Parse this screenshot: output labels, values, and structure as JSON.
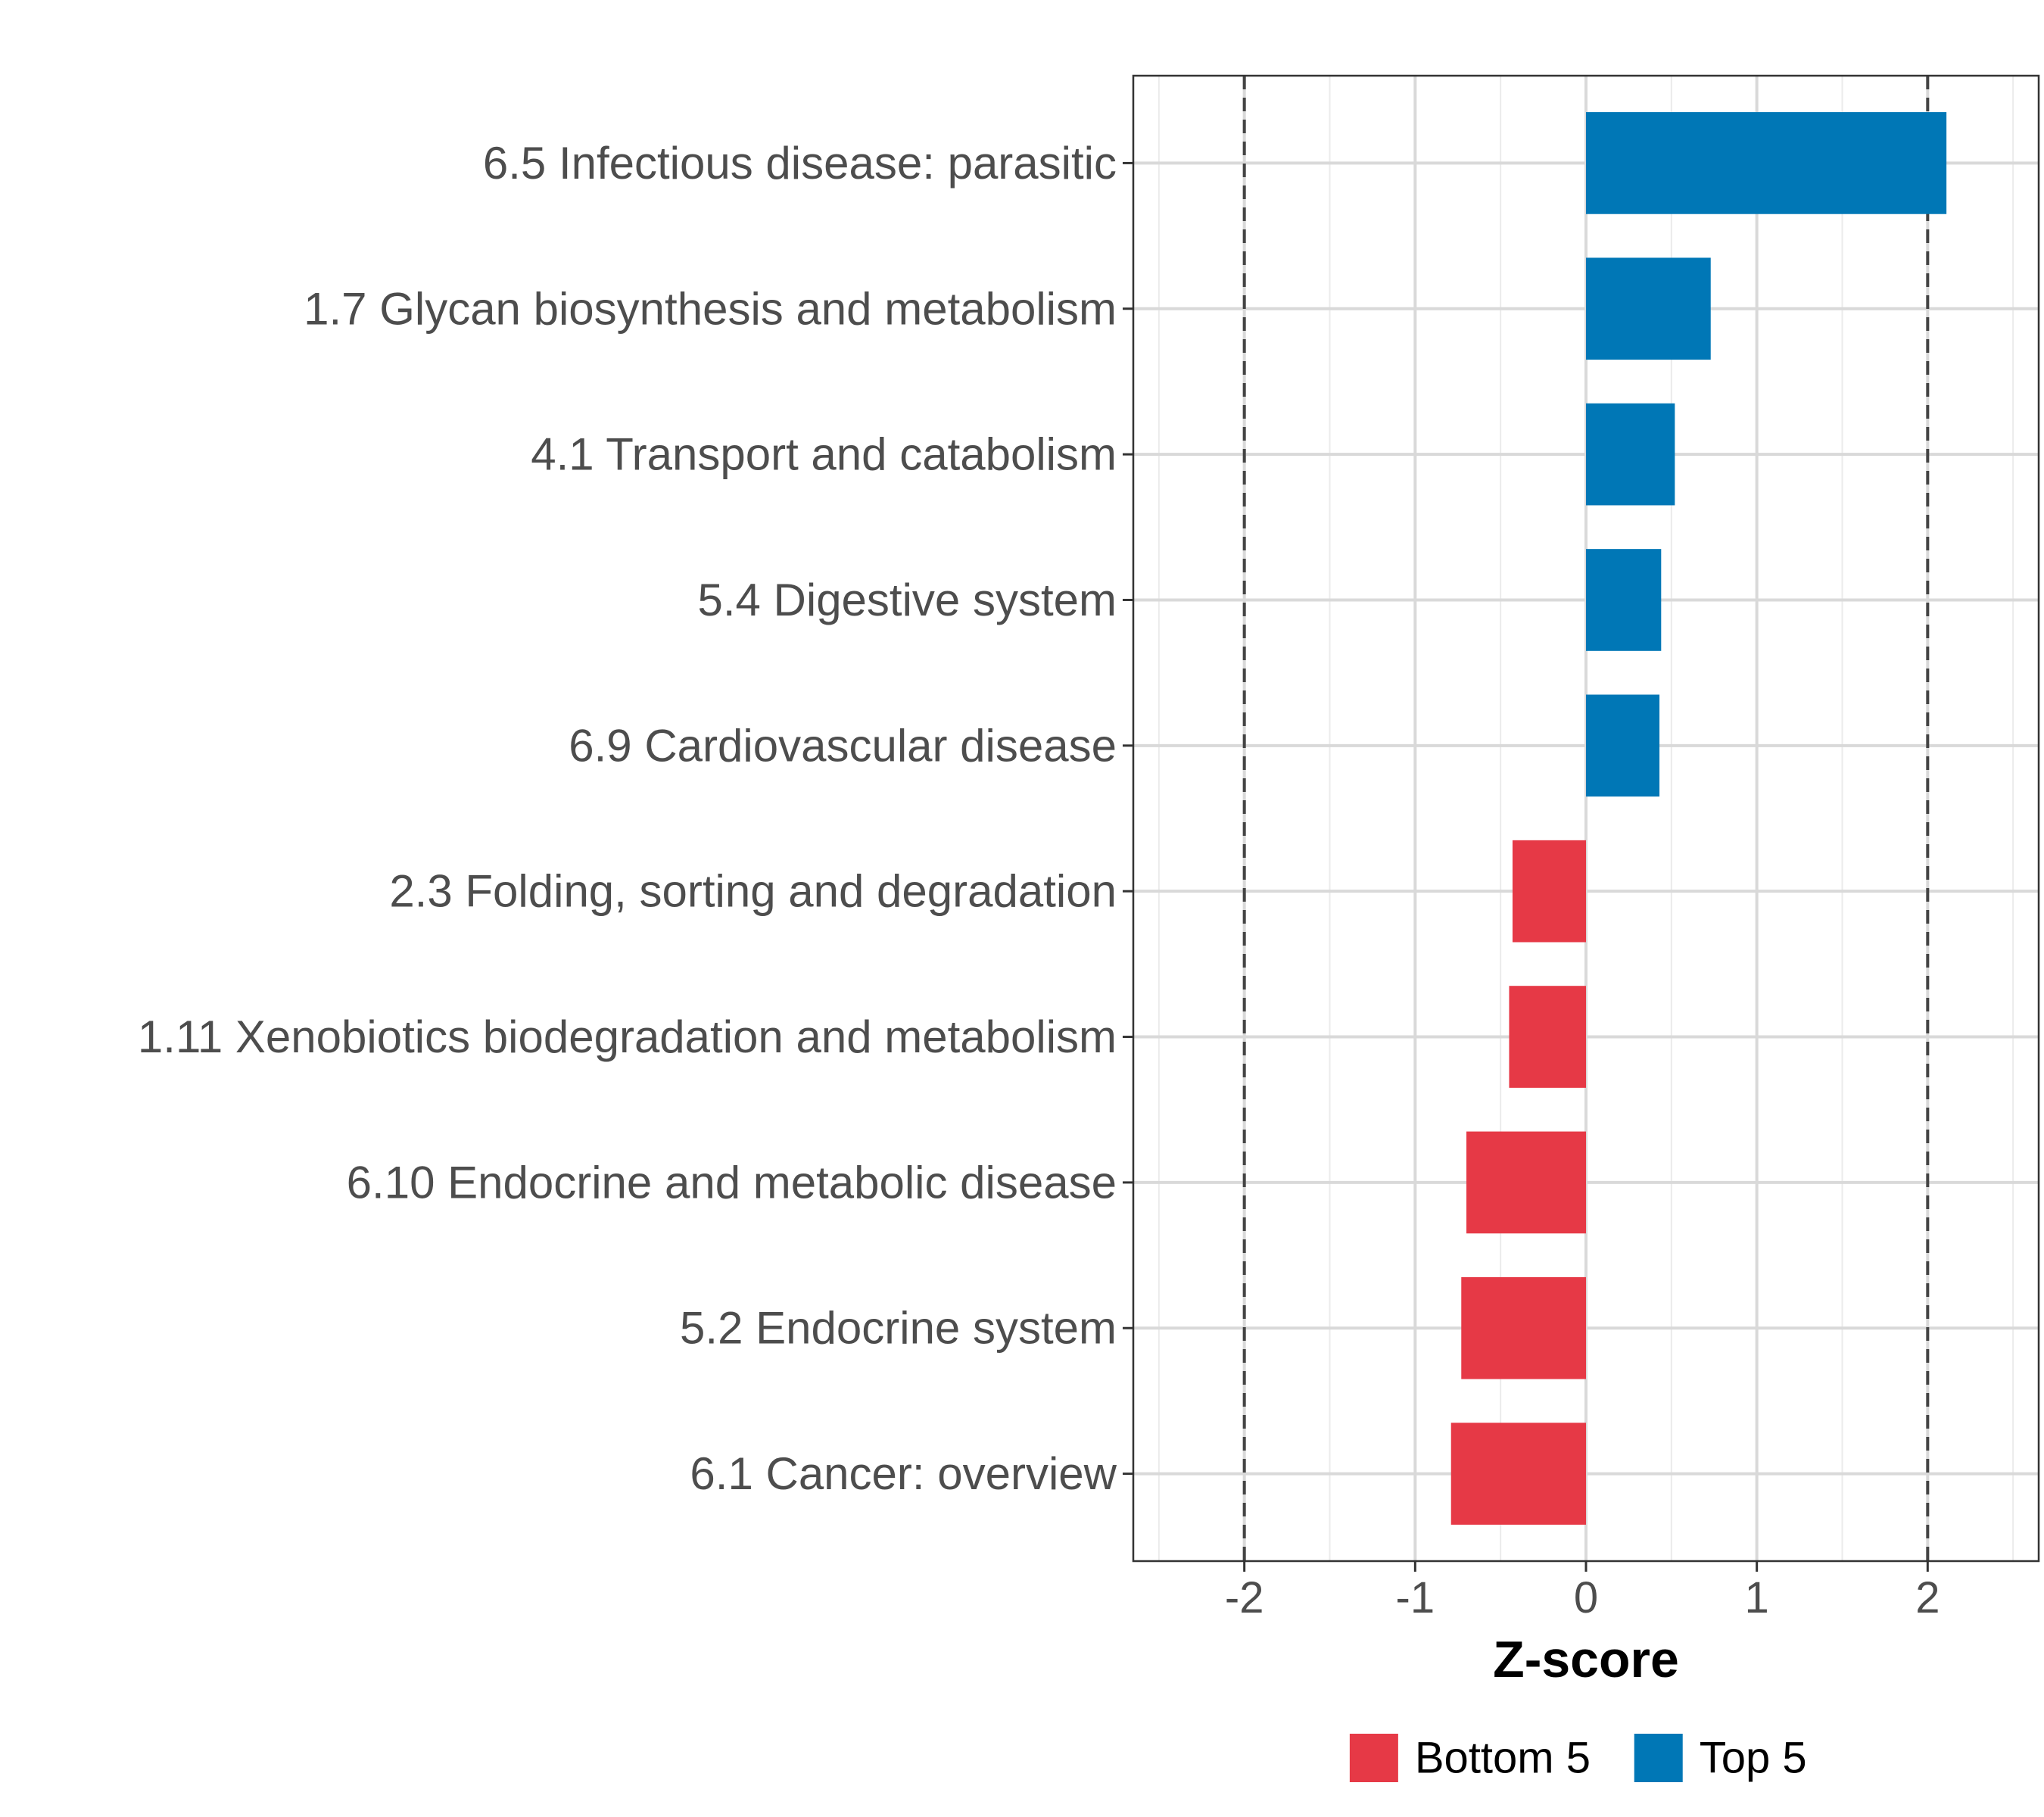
{
  "chart_data": {
    "type": "bar",
    "orientation": "horizontal",
    "xlabel": "Z-score",
    "ylabel": "",
    "xlim": [
      -2.65,
      2.65
    ],
    "x_ticks": [
      -2,
      -1,
      0,
      1,
      2
    ],
    "x_tick_labels": [
      "-2",
      "-1",
      "0",
      "1",
      "2"
    ],
    "reference_lines": [
      -2,
      2
    ],
    "grid": true,
    "legend_position": "bottom",
    "categories": [
      "6.5 Infectious disease: parasitic",
      "1.7 Glycan biosynthesis and metabolism",
      "4.1 Transport and catabolism",
      "5.4 Digestive system",
      "6.9 Cardiovascular disease",
      "2.3 Folding, sorting and degradation",
      "1.11 Xenobiotics biodegradation and metabolism",
      "6.10 Endocrine and metabolic disease",
      "5.2 Endocrine system",
      "6.1 Cancer: overview"
    ],
    "values": [
      2.11,
      0.73,
      0.52,
      0.44,
      0.43,
      -0.43,
      -0.45,
      -0.7,
      -0.73,
      -0.79
    ],
    "groups": [
      "Top 5",
      "Top 5",
      "Top 5",
      "Top 5",
      "Top 5",
      "Bottom 5",
      "Bottom 5",
      "Bottom 5",
      "Bottom 5",
      "Bottom 5"
    ],
    "legend": [
      {
        "name": "Bottom 5",
        "color": "#e63946"
      },
      {
        "name": "Top 5",
        "color": "#0077b6"
      }
    ]
  }
}
